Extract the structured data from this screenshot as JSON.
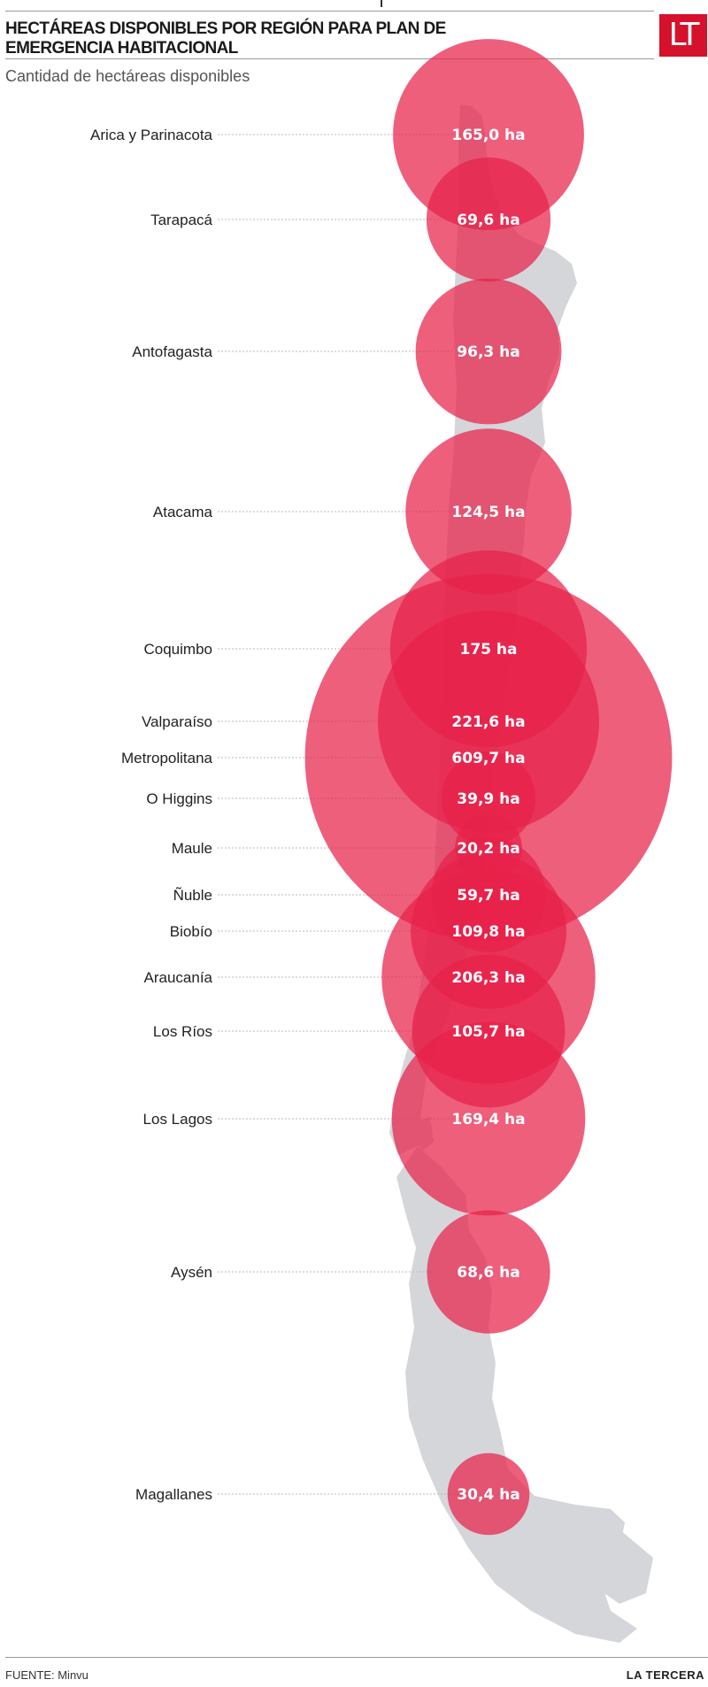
{
  "header": {
    "title": "HECTÁREAS DISPONIBLES POR REGIÓN PARA PLAN DE EMERGENCIA HABITACIONAL",
    "subtitle": "Cantidad de hectáreas disponibles",
    "logo": "LT"
  },
  "footer": {
    "source": "FUENTE: Minvu",
    "brand": "LA TERCERA"
  },
  "colors": {
    "bubble": "#e8214a",
    "map": "#d5d6d9",
    "leader": "#b8b8b8",
    "logo_bg": "#d6112b"
  },
  "chart_data": {
    "type": "bubble",
    "unit": "ha",
    "background": "map of Chile",
    "series": [
      {
        "region": "Arica y Parinacota",
        "value": 165.0,
        "label": "165,0 ha"
      },
      {
        "region": "Tarapacá",
        "value": 69.6,
        "label": "69,6 ha"
      },
      {
        "region": "Antofagasta",
        "value": 96.3,
        "label": "96,3 ha"
      },
      {
        "region": "Atacama",
        "value": 124.5,
        "label": "124,5 ha"
      },
      {
        "region": "Coquimbo",
        "value": 175,
        "label": "175 ha"
      },
      {
        "region": "Valparaíso",
        "value": 221.6,
        "label": "221,6 ha"
      },
      {
        "region": "Metropolitana",
        "value": 609.7,
        "label": "609,7 ha"
      },
      {
        "region": "O Higgins",
        "value": 39.9,
        "label": "39,9 ha"
      },
      {
        "region": "Maule",
        "value": 20.2,
        "label": "20,2 ha"
      },
      {
        "region": "Ñuble",
        "value": 59.7,
        "label": "59,7 ha"
      },
      {
        "region": "Biobío",
        "value": 109.8,
        "label": "109,8 ha"
      },
      {
        "region": "Araucanía",
        "value": 206.3,
        "label": "206,3 ha"
      },
      {
        "region": "Los Ríos",
        "value": 105.7,
        "label": "105,7 ha"
      },
      {
        "region": "Los Lagos",
        "value": 169.4,
        "label": "169,4 ha"
      },
      {
        "region": "Aysén",
        "value": 68.6,
        "label": "68,6 ha"
      },
      {
        "region": "Magallanes",
        "value": 30.4,
        "label": "30,4 ha"
      }
    ]
  }
}
